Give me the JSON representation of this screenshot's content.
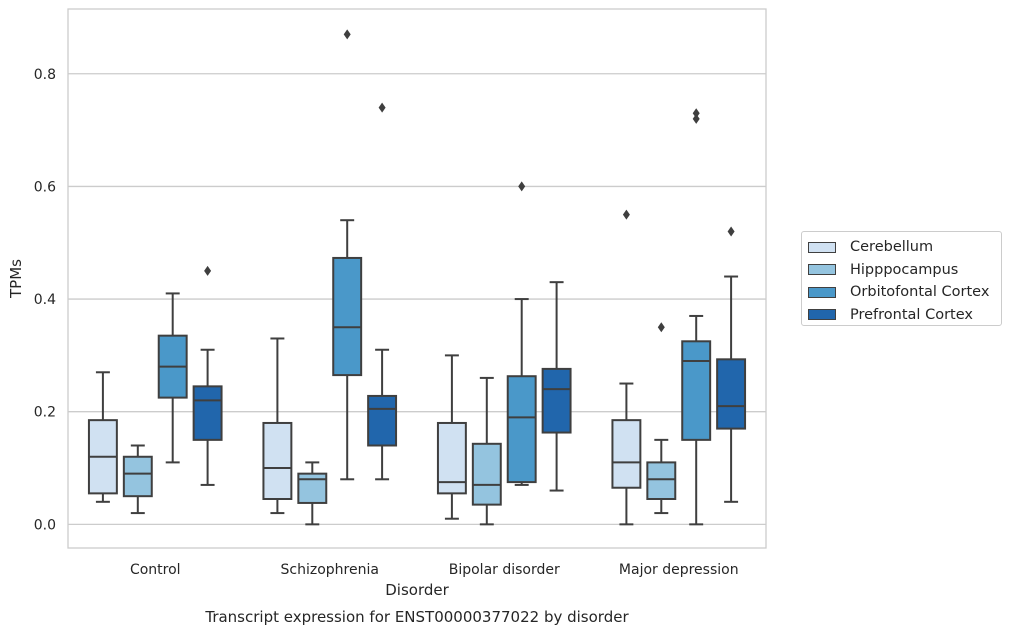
{
  "chart_data": {
    "type": "box",
    "title": "Transcript expression for ENST00000377022 by disorder",
    "xlabel": "Disorder",
    "ylabel": "TPMs",
    "ylim": [
      -0.042,
      0.915
    ],
    "yticks": [
      "0.0",
      "0.2",
      "0.4",
      "0.6",
      "0.8"
    ],
    "grid": true,
    "legend_position": "right",
    "categories": [
      "Control",
      "Schizophrenia",
      "Bipolar disorder",
      "Major depression"
    ],
    "series": [
      {
        "name": "Cerebellum",
        "color": "#d0e1f2",
        "boxes": [
          {
            "whislo": 0.04,
            "q1": 0.055,
            "med": 0.12,
            "q3": 0.185,
            "whishi": 0.27,
            "fliers": []
          },
          {
            "whislo": 0.02,
            "q1": 0.045,
            "med": 0.1,
            "q3": 0.18,
            "whishi": 0.33,
            "fliers": []
          },
          {
            "whislo": 0.01,
            "q1": 0.055,
            "med": 0.075,
            "q3": 0.18,
            "whishi": 0.3,
            "fliers": []
          },
          {
            "whislo": 0.0,
            "q1": 0.065,
            "med": 0.11,
            "q3": 0.185,
            "whishi": 0.25,
            "fliers": [
              0.55
            ]
          }
        ]
      },
      {
        "name": "Hipppocampus",
        "color": "#94c4df",
        "boxes": [
          {
            "whislo": 0.02,
            "q1": 0.05,
            "med": 0.09,
            "q3": 0.12,
            "whishi": 0.14,
            "fliers": []
          },
          {
            "whislo": 0.0,
            "q1": 0.038,
            "med": 0.08,
            "q3": 0.09,
            "whishi": 0.11,
            "fliers": []
          },
          {
            "whislo": 0.0,
            "q1": 0.035,
            "med": 0.07,
            "q3": 0.143,
            "whishi": 0.26,
            "fliers": []
          },
          {
            "whislo": 0.02,
            "q1": 0.045,
            "med": 0.08,
            "q3": 0.11,
            "whishi": 0.15,
            "fliers": [
              0.35
            ]
          }
        ]
      },
      {
        "name": "Orbitofontal Cortex",
        "color": "#4a98c9",
        "boxes": [
          {
            "whislo": 0.11,
            "q1": 0.225,
            "med": 0.28,
            "q3": 0.335,
            "whishi": 0.41,
            "fliers": []
          },
          {
            "whislo": 0.08,
            "q1": 0.265,
            "med": 0.35,
            "q3": 0.473,
            "whishi": 0.54,
            "fliers": [
              0.87
            ]
          },
          {
            "whislo": 0.07,
            "q1": 0.075,
            "med": 0.19,
            "q3": 0.263,
            "whishi": 0.4,
            "fliers": [
              0.6
            ]
          },
          {
            "whislo": 0.0,
            "q1": 0.15,
            "med": 0.29,
            "q3": 0.325,
            "whishi": 0.37,
            "fliers": [
              0.72,
              0.73
            ]
          }
        ]
      },
      {
        "name": "Prefrontal Cortex",
        "color": "#2166ac",
        "boxes": [
          {
            "whislo": 0.07,
            "q1": 0.15,
            "med": 0.22,
            "q3": 0.245,
            "whishi": 0.31,
            "fliers": [
              0.45
            ]
          },
          {
            "whislo": 0.08,
            "q1": 0.14,
            "med": 0.205,
            "q3": 0.228,
            "whishi": 0.31,
            "fliers": [
              0.74
            ]
          },
          {
            "whislo": 0.06,
            "q1": 0.163,
            "med": 0.24,
            "q3": 0.276,
            "whishi": 0.43,
            "fliers": []
          },
          {
            "whislo": 0.04,
            "q1": 0.17,
            "med": 0.21,
            "q3": 0.293,
            "whishi": 0.44,
            "fliers": [
              0.52
            ]
          }
        ]
      }
    ]
  }
}
